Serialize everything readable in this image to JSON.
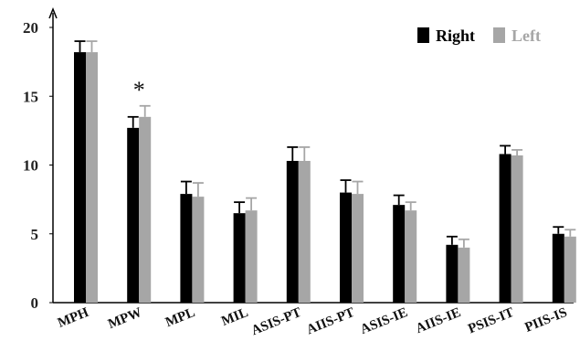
{
  "chart_data": {
    "type": "bar",
    "categories": [
      "MPH",
      "MPW",
      "MPL",
      "MIL",
      "ASIS-PT",
      "AIIS-PT",
      "ASIS-IE",
      "AIIS-IE",
      "PSIS-IT",
      "PIIS-IS"
    ],
    "series": [
      {
        "name": "Right",
        "color": "#000000",
        "values": [
          18.2,
          12.7,
          7.9,
          6.5,
          10.3,
          8.0,
          7.1,
          4.2,
          10.8,
          5.0
        ],
        "errors": [
          0.8,
          0.8,
          0.9,
          0.8,
          1.0,
          0.9,
          0.7,
          0.6,
          0.6,
          0.5
        ]
      },
      {
        "name": "Left",
        "color": "#a6a6a6",
        "values": [
          18.2,
          13.5,
          7.7,
          6.7,
          10.3,
          7.9,
          6.7,
          4.0,
          10.7,
          4.8
        ],
        "errors": [
          0.8,
          0.8,
          1.0,
          0.9,
          1.0,
          0.9,
          0.6,
          0.6,
          0.4,
          0.5
        ]
      }
    ],
    "ylim": [
      0,
      20
    ],
    "yticks": [
      "0",
      "5",
      "10",
      "15",
      "20"
    ],
    "annotations": [
      {
        "text": "*",
        "category": "MPW",
        "y": 15.8
      }
    ],
    "legend_position": "top-right",
    "grid": false
  }
}
